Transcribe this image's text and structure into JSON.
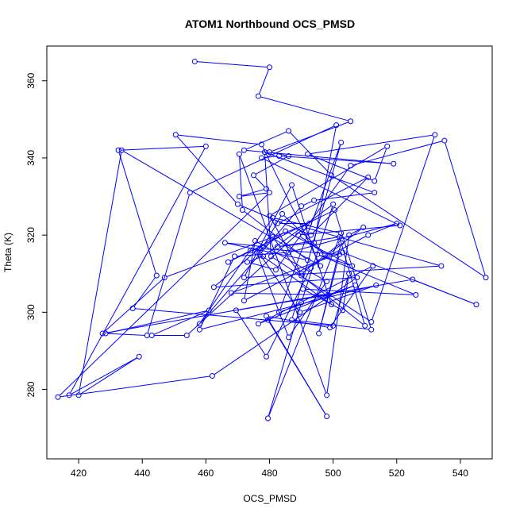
{
  "chart_data": {
    "type": "scatter",
    "title": "ATOM1 Northbound OCS_PMSD",
    "xlabel": "OCS_PMSD",
    "ylabel": "Theta (K)",
    "xlim": [
      410,
      550
    ],
    "ylim": [
      262,
      369
    ],
    "xticks": [
      420,
      440,
      460,
      480,
      500,
      520,
      540
    ],
    "yticks": [
      280,
      300,
      320,
      340,
      360
    ],
    "grid": false,
    "legend": "none",
    "style": "lines-and-points",
    "series_color": "#0000ff",
    "series": [
      {
        "x": [
          456.5,
          480.0,
          476.5,
          505.5,
          480.0,
          486.0,
          475.0,
          479.0,
          470.5,
          480.0,
          413.5,
          462.0,
          507.5,
          462.5,
          481.0,
          490.0,
          510.0,
          502.0,
          482.5,
          494.0,
          501.0,
          455.0,
          441.5,
          428.5,
          461.0,
          443.0,
          454.0,
          491.0,
          534.0,
          472.0,
          487.0,
          499.5,
          477.0,
          489.5,
          513.5,
          458.0,
          469.0,
          486.0,
          520.0,
          511.0,
          472.0,
          475.5,
          498.0,
          486.0,
          476.0,
          485.0,
          506.0,
          495.0,
          526.0,
          490.5,
          503.0,
          505.0,
          500.0,
          437.0,
          444.5,
          432.5,
          460.0,
          417.0,
          439.0,
          420.0,
          433.5,
          496.0,
          477.5,
          450.5,
          470.0,
          493.0,
          511.0,
          482.5,
          492.5,
          447.0,
          427.5,
          525.0,
          545.0,
          503.0,
          468.0,
          498.5,
          469.5,
          479.0,
          493.0,
          509.5,
          505.0,
          498.0,
          470.5,
          471.5,
          492.0,
          466.0,
          478.0,
          484.0,
          497.5,
          489.0,
          521.0,
          477.5,
          483.0,
          519.0,
          472.0,
          486.0,
          499.5,
          548.0,
          535.0,
          505.5,
          482.0,
          473.0,
          478.0,
          500.0,
          490.0,
          479.5,
          502.5,
          481.0,
          458.0,
          490.0,
          494.0,
          513.0,
          478.5,
          480.5,
          512.0,
          532.0,
          492.0,
          513.0,
          517.0,
          480.0,
          490.0,
          502.5,
          495.5,
          502.0,
          477.0,
          474.0,
          467.0,
          500.5,
          512.0,
          487.0,
          502.5,
          483.0,
          507.0,
          476.5,
          512.5,
          499.0,
          479.0,
          498.0,
          479.5
        ],
        "y": [
          365.0,
          363.5,
          356.0,
          349.5,
          341.5,
          340.5,
          335.5,
          332.0,
          330.0,
          331.0,
          278.0,
          283.5,
          309.0,
          306.5,
          319.5,
          309.5,
          296.5,
          319.5,
          317.0,
          318.0,
          348.5,
          331.0,
          294.0,
          294.5,
          300.5,
          294.0,
          294.0,
          322.0,
          312.0,
          309.0,
          333.0,
          302.0,
          315.0,
          300.0,
          307.0,
          295.5,
          314.5,
          315.5,
          323.0,
          320.0,
          303.0,
          318.5,
          308.0,
          293.5,
          315.5,
          321.0,
          312.0,
          315.0,
          304.5,
          306.0,
          300.5,
          310.0,
          296.5,
          301.0,
          309.5,
          342.0,
          343.0,
          278.5,
          288.5,
          278.5,
          342.0,
          312.0,
          343.5,
          346.0,
          328.0,
          320.0,
          335.0,
          323.0,
          323.0,
          309.0,
          294.5,
          308.5,
          302.0,
          315.5,
          305.0,
          304.5,
          300.5,
          288.5,
          311.5,
          322.0,
          320.0,
          278.5,
          341.0,
          326.5,
          313.5,
          318.0,
          317.0,
          325.5,
          315.0,
          320.0,
          322.5,
          340.0,
          340.5,
          338.5,
          342.0,
          347.0,
          335.5,
          309.0,
          344.5,
          338.0,
          311.0,
          313.0,
          314.5,
          328.0,
          302.5,
          272.5,
          320.5,
          324.5,
          297.0,
          327.5,
          329.0,
          331.0,
          341.5,
          314.5,
          297.5,
          346.0,
          341.0,
          334.0,
          343.0,
          325.0,
          310.0,
          318.0,
          294.5,
          315.0,
          316.5,
          316.0,
          313.0,
          326.5,
          295.5,
          298.0,
          344.0,
          300.0,
          307.0,
          297.0,
          312.0,
          296.0,
          299.0,
          273.0,
          298.0
        ]
      }
    ]
  }
}
